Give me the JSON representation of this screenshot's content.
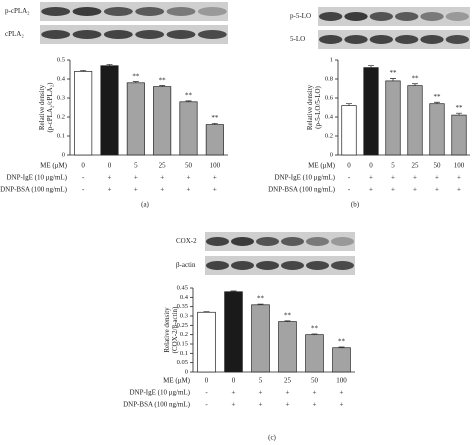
{
  "chart_data": [
    {
      "type": "bar",
      "panel": "(a)",
      "blots": [
        "p-cPLA₂",
        "cPLA₂"
      ],
      "ylabel": [
        "Relative density",
        "(p-cPLA₂/cPLA₂)"
      ],
      "categories": [
        "0",
        "0",
        "5",
        "25",
        "50",
        "100"
      ],
      "conditions": [
        {
          "label": "ME (μM)",
          "values": [
            "0",
            "0",
            "5",
            "25",
            "50",
            "100"
          ]
        },
        {
          "label": "DNP-IgE (10 μg/mL)",
          "values": [
            "-",
            "+",
            "+",
            "+",
            "+",
            "+"
          ]
        },
        {
          "label": "DNP-BSA (100 ng/mL)",
          "values": [
            "-",
            "+",
            "+",
            "+",
            "+",
            "+"
          ]
        }
      ],
      "values": [
        0.44,
        0.47,
        0.38,
        0.36,
        0.28,
        0.16
      ],
      "errors": [
        0.005,
        0.006,
        0.006,
        0.005,
        0.005,
        0.006
      ],
      "significance": [
        null,
        null,
        "**",
        "**",
        "**",
        "**"
      ],
      "colors": [
        "#ffffff",
        "#1a1a1a",
        "#a3a3a3",
        "#a3a3a3",
        "#a3a3a3",
        "#a3a3a3"
      ],
      "ylim": [
        0,
        0.5
      ],
      "yticks": [
        0,
        0.1,
        0.2,
        0.3,
        0.4,
        0.5
      ]
    },
    {
      "type": "bar",
      "panel": "(b)",
      "blots": [
        "p-5-LO",
        "5-LO"
      ],
      "ylabel": [
        "Relative density",
        "(p-5-LO/5-LO)"
      ],
      "categories": [
        "0",
        "0",
        "5",
        "25",
        "50",
        "100"
      ],
      "conditions": [
        {
          "label": "ME (μM)",
          "values": [
            "0",
            "0",
            "5",
            "25",
            "50",
            "100"
          ]
        },
        {
          "label": "DNP-IgE (10 μg/mL)",
          "values": [
            "-",
            "+",
            "+",
            "+",
            "+",
            "+"
          ]
        },
        {
          "label": "DNP-BSA (100 ng/mL)",
          "values": [
            "-",
            "+",
            "+",
            "+",
            "+",
            "+"
          ]
        }
      ],
      "values": [
        0.52,
        0.92,
        0.78,
        0.73,
        0.54,
        0.42
      ],
      "errors": [
        0.02,
        0.02,
        0.025,
        0.02,
        0.015,
        0.02
      ],
      "significance": [
        null,
        null,
        "**",
        "**",
        "**",
        "**"
      ],
      "colors": [
        "#ffffff",
        "#1a1a1a",
        "#a3a3a3",
        "#a3a3a3",
        "#a3a3a3",
        "#a3a3a3"
      ],
      "ylim": [
        0,
        1
      ],
      "yticks": [
        0,
        0.2,
        0.4,
        0.6,
        0.8,
        1
      ]
    },
    {
      "type": "bar",
      "panel": "(c)",
      "blots": [
        "COX-2",
        "β-actin"
      ],
      "ylabel": [
        "Relative density",
        "(COX-2/β-actin)"
      ],
      "categories": [
        "0",
        "0",
        "5",
        "25",
        "50",
        "100"
      ],
      "conditions": [
        {
          "label": "ME (μM)",
          "values": [
            "0",
            "0",
            "5",
            "25",
            "50",
            "100"
          ]
        },
        {
          "label": "DNP-IgE (10 μg/mL)",
          "values": [
            "-",
            "+",
            "+",
            "+",
            "+",
            "+"
          ]
        },
        {
          "label": "DNP-BSA (100 ng/mL)",
          "values": [
            "-",
            "+",
            "+",
            "+",
            "+",
            "+"
          ]
        }
      ],
      "values": [
        0.32,
        0.43,
        0.36,
        0.27,
        0.2,
        0.13
      ],
      "errors": [
        0.003,
        0.004,
        0.004,
        0.004,
        0.004,
        0.004
      ],
      "significance": [
        null,
        null,
        "**",
        "**",
        "**",
        "**"
      ],
      "colors": [
        "#ffffff",
        "#1a1a1a",
        "#a3a3a3",
        "#a3a3a3",
        "#a3a3a3",
        "#a3a3a3"
      ],
      "ylim": [
        0,
        0.45
      ],
      "yticks": [
        0,
        0.05,
        0.1,
        0.15,
        0.2,
        0.25,
        0.3,
        0.35,
        0.4,
        0.45
      ]
    }
  ]
}
